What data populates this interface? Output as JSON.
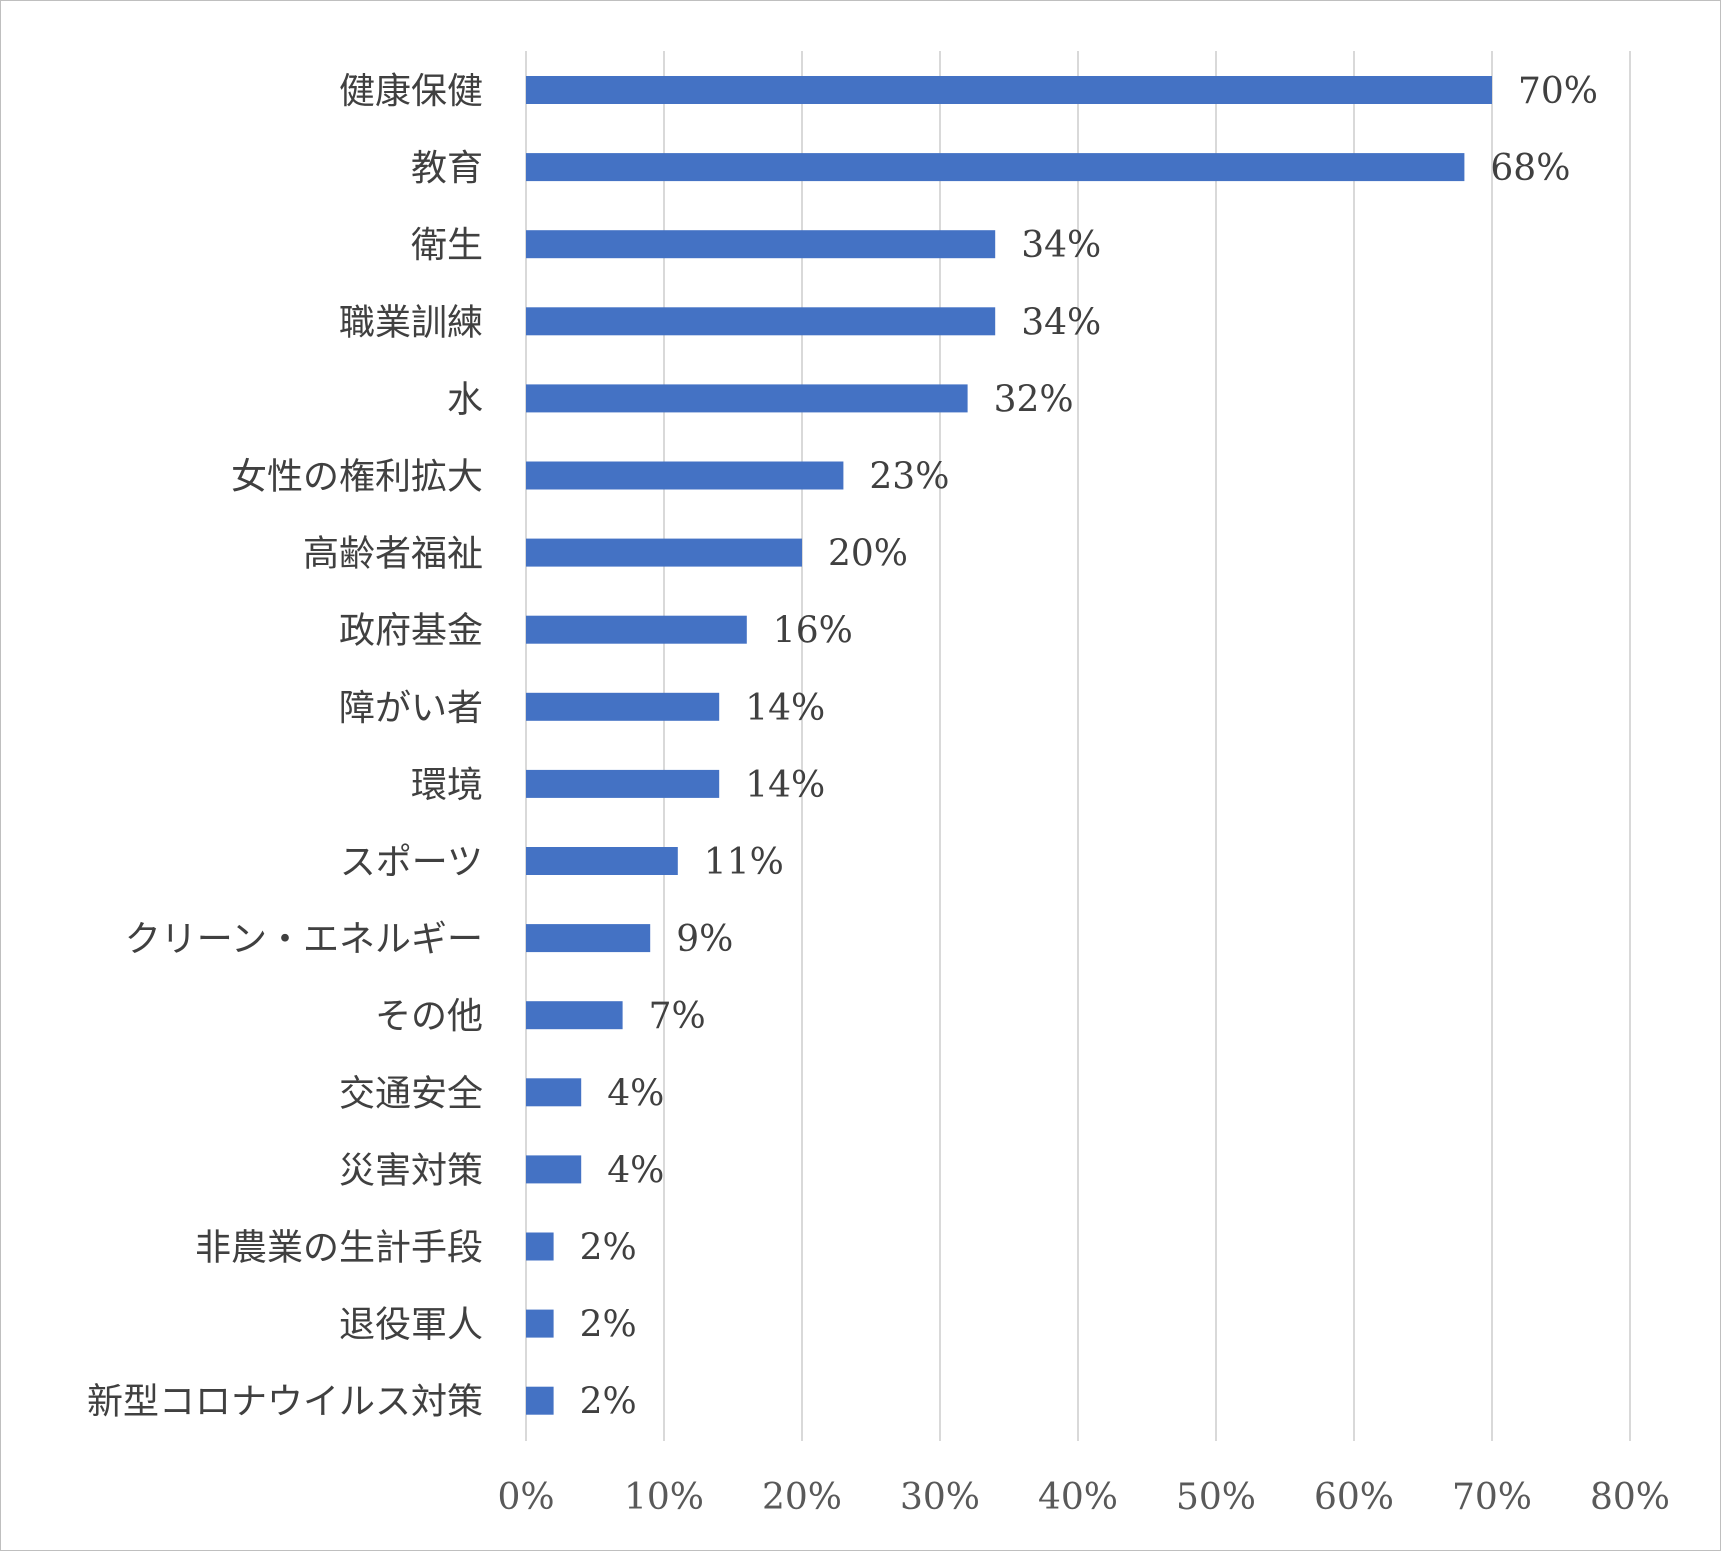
{
  "chart_data": {
    "type": "bar",
    "orientation": "horizontal",
    "categories": [
      "健康保健",
      "教育",
      "衛生",
      "職業訓練",
      "水",
      "女性の権利拡大",
      "高齢者福祉",
      "政府基金",
      "障がい者",
      "環境",
      "スポーツ",
      "クリーン・エネルギー",
      "その他",
      "交通安全",
      "災害対策",
      "非農業の生計手段",
      "退役軍人",
      "新型コロナウイルス対策"
    ],
    "values": [
      70,
      68,
      34,
      34,
      32,
      23,
      20,
      16,
      14,
      14,
      11,
      9,
      7,
      4,
      4,
      2,
      2,
      2
    ],
    "value_labels": [
      "70%",
      "68%",
      "34%",
      "34%",
      "32%",
      "23%",
      "20%",
      "16%",
      "14%",
      "14%",
      "11%",
      "9%",
      "7%",
      "4%",
      "4%",
      "2%",
      "2%",
      "2%"
    ],
    "x_ticks": [
      "0%",
      "10%",
      "20%",
      "30%",
      "40%",
      "50%",
      "60%",
      "70%",
      "80%"
    ],
    "xlim": [
      0,
      80
    ],
    "title": "",
    "xlabel": "",
    "ylabel": "",
    "grid": "vertical",
    "legend": "none",
    "colors": {
      "bar": "#4472c4",
      "grid": "#d9d9d9",
      "text": "#404040",
      "border": "#bfbfbf"
    }
  }
}
